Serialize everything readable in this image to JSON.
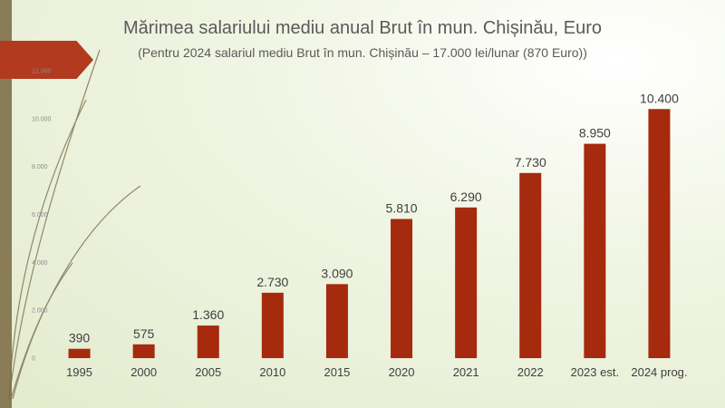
{
  "chart_data": {
    "type": "bar",
    "title": "Mărimea salariului mediu anual Brut în mun. Chișinău, Euro",
    "subtitle": "(Pentru 2024 salariul mediu Brut în mun. Chișinău – 17.000 lei/lunar (870 Euro))",
    "categories": [
      "1995",
      "2000",
      "2005",
      "2010",
      "2015",
      "2020",
      "2021",
      "2022",
      "2023 est.",
      "2024 prog."
    ],
    "values": [
      390,
      575,
      1360,
      2730,
      3090,
      5810,
      6290,
      7730,
      8950,
      10400
    ],
    "data_labels": [
      "390",
      "575",
      "1.360",
      "2.730",
      "3.090",
      "5.810",
      "6.290",
      "7.730",
      "8.950",
      "10.400"
    ],
    "y_ticks": [
      0,
      2000,
      4000,
      6000,
      8000,
      10000,
      12000
    ],
    "y_tick_labels": [
      "0",
      "2.000",
      "4.000",
      "6.000",
      "8.000",
      "10.000",
      "12.000"
    ],
    "ylim": [
      0,
      12000
    ],
    "grid": false,
    "legend": "none",
    "bar_color": "#a52a0e",
    "xlabel": "",
    "ylabel": ""
  },
  "colors": {
    "accent_arrow": "#b23a1f",
    "left_bar": "#8a7c56"
  }
}
